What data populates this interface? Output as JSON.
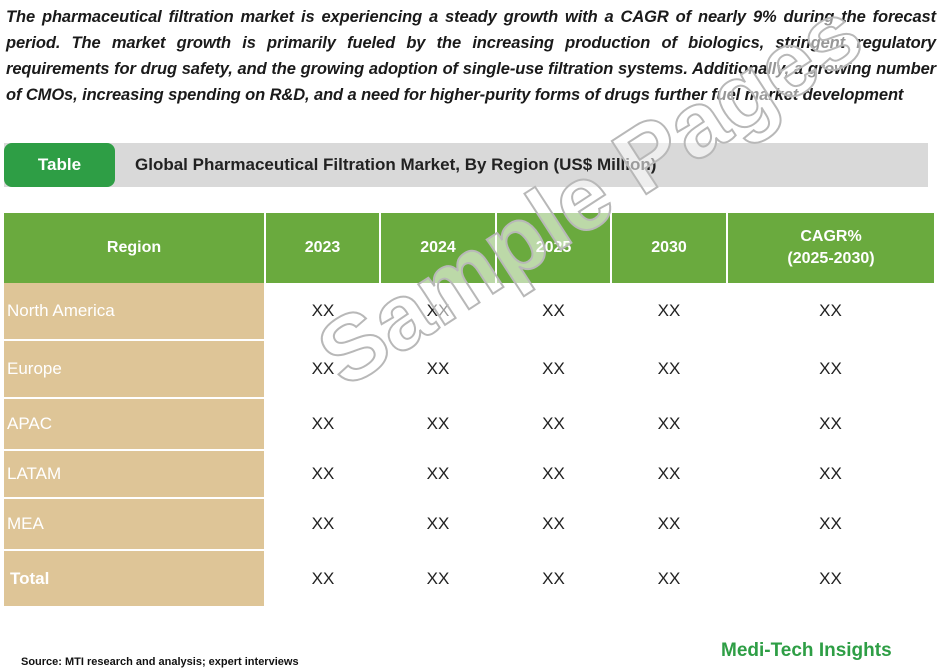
{
  "intro_text": "The pharmaceutical filtration market is experiencing a steady growth with a CAGR of nearly 9% during the forecast period. The market growth is primarily fueled by the increasing production of biologics, stringent regulatory requirements for drug safety, and the growing adoption of single-use filtration systems. Additionally, a growing number of CMOs, increasing spending on R&D, and a need for higher-purity forms of drugs further fuel market development",
  "table_tag": "Table",
  "table_title": "Global Pharmaceutical Filtration Market, By Region (US$ Million)",
  "columns": {
    "region": "Region",
    "y2023": "2023",
    "y2024": "2024",
    "y2025": "2025",
    "y2030": "2030",
    "cagr_line1": "CAGR%",
    "cagr_line2": "(2025-2030)"
  },
  "rows": [
    {
      "region": "North America",
      "v2023": "XX",
      "v2024": "XX",
      "v2025": "XX",
      "v2030": "XX",
      "cagr": "XX"
    },
    {
      "region": "Europe",
      "v2023": "XX",
      "v2024": "XX",
      "v2025": "XX",
      "v2030": "XX",
      "cagr": "XX"
    },
    {
      "region": "APAC",
      "v2023": "XX",
      "v2024": "XX",
      "v2025": "XX",
      "v2030": "XX",
      "cagr": "XX"
    },
    {
      "region": "LATAM",
      "v2023": "XX",
      "v2024": "XX",
      "v2025": "XX",
      "v2030": "XX",
      "cagr": "XX"
    },
    {
      "region": "MEA",
      "v2023": "XX",
      "v2024": "XX",
      "v2025": "XX",
      "v2030": "XX",
      "cagr": "XX"
    },
    {
      "region": "Total",
      "v2023": "XX",
      "v2024": "XX",
      "v2025": "XX",
      "v2030": "XX",
      "cagr": "XX"
    }
  ],
  "watermark": "Sample Pages",
  "source": "Source: MTI research and analysis; expert interviews",
  "brand": "Medi-Tech Insights",
  "colors": {
    "header_green": "#6aaa3e",
    "tag_green": "#2e9e45",
    "region_tan": "#dec597",
    "title_bar_gray": "#d9d9d9"
  }
}
